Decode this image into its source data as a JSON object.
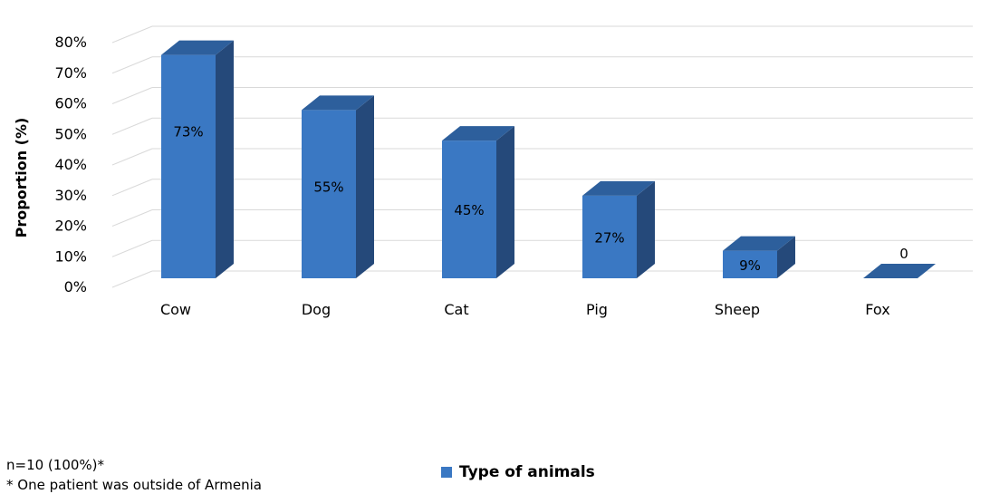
{
  "chart_data": {
    "type": "bar",
    "title": "",
    "xlabel": "",
    "ylabel": "Proportion (%)",
    "ylim": [
      0,
      80
    ],
    "yticks": [
      "0%",
      "10%",
      "20%",
      "30%",
      "40%",
      "50%",
      "60%",
      "70%",
      "80%"
    ],
    "categories": [
      "Cow",
      "Dog",
      "Cat",
      "Pig",
      "Sheep",
      "Fox"
    ],
    "values": [
      73,
      55,
      45,
      27,
      9,
      0
    ],
    "data_labels": [
      "73%",
      "55%",
      "45%",
      "27%",
      "9%",
      "0"
    ],
    "series": [
      {
        "name": "Type of animals",
        "values": [
          73,
          55,
          45,
          27,
          9,
          0
        ]
      }
    ],
    "legend": "bottom-center",
    "grid": true,
    "style": "3d-column",
    "colors": {
      "front": "#3a78c3",
      "side": "#25497a",
      "top": "#2d5f9c",
      "grid": "#d9d9d9"
    }
  },
  "notes": {
    "sample_size": "n=10 (100%)*",
    "footnote": "* One patient was outside of Armenia"
  }
}
